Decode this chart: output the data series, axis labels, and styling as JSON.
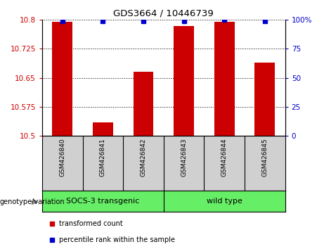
{
  "title": "GDS3664 / 10446739",
  "samples": [
    "GSM426840",
    "GSM426841",
    "GSM426842",
    "GSM426843",
    "GSM426844",
    "GSM426845"
  ],
  "red_values": [
    10.795,
    10.535,
    10.665,
    10.785,
    10.795,
    10.69
  ],
  "blue_values": [
    99,
    99,
    99,
    99,
    100,
    99
  ],
  "ylim_left": [
    10.5,
    10.8
  ],
  "ylim_right": [
    0,
    100
  ],
  "left_ticks": [
    10.5,
    10.575,
    10.65,
    10.725,
    10.8
  ],
  "right_ticks": [
    0,
    25,
    50,
    75,
    100
  ],
  "bar_color": "#cc0000",
  "dot_color": "#0000cc",
  "base_value": 10.5,
  "tick_color_left": "#cc0000",
  "tick_color_right": "#0000cc",
  "background_plot": "#ffffff",
  "background_label": "#d0d0d0",
  "background_group": "#66ee66",
  "legend_red": "transformed count",
  "legend_blue": "percentile rank within the sample",
  "genotype_label": "genotype/variation",
  "group_labels": [
    "SOCS-3 transgenic",
    "wild type"
  ],
  "group_ranges": [
    [
      0,
      2
    ],
    [
      3,
      5
    ]
  ]
}
